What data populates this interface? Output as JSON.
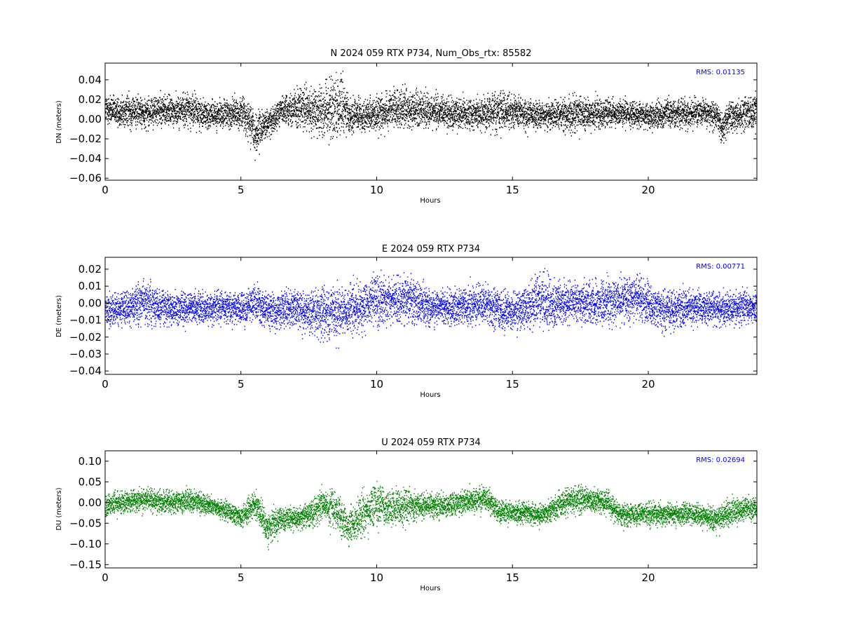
{
  "chart_data": [
    {
      "type": "scatter",
      "title": "N 2024 059 RTX  P734, Num_Obs_rtx: 85582",
      "xlabel": "Hours",
      "ylabel": "DN (meters)",
      "xlim": [
        0,
        24
      ],
      "ylim": [
        -0.062,
        0.057
      ],
      "xticks": [
        0,
        5,
        10,
        15,
        20
      ],
      "xtick_labels": [
        "0",
        "5",
        "10",
        "15",
        "20"
      ],
      "yticks": [
        -0.06,
        -0.04,
        -0.02,
        0.0,
        0.02,
        0.04
      ],
      "ytick_labels": [
        "−0.06",
        "−0.04",
        "−0.02",
        "0.00",
        "0.02",
        "0.04"
      ],
      "color": "#000000",
      "rms_label": "RMS:  0.01135",
      "grid": false,
      "profile": {
        "hours": [
          0,
          0.5,
          1,
          1.5,
          2,
          2.5,
          3,
          3.5,
          4,
          4.5,
          5,
          5.3,
          5.5,
          6,
          6.5,
          7,
          7.5,
          8,
          8.3,
          8.7,
          9,
          9.5,
          10,
          10.5,
          11,
          11.5,
          12,
          13,
          14,
          14.5,
          15,
          15.5,
          16,
          17,
          17.5,
          18,
          19,
          20,
          21,
          21.5,
          22,
          22.5,
          22.7,
          23,
          23.5,
          24
        ],
        "center": [
          0.01,
          0.008,
          0.009,
          0.007,
          0.01,
          0.008,
          0.011,
          0.007,
          0.004,
          0.006,
          0.007,
          0.0,
          -0.015,
          -0.003,
          0.01,
          0.012,
          0.008,
          0.01,
          0.012,
          0.013,
          0.004,
          0.004,
          0.006,
          0.01,
          0.011,
          0.01,
          0.008,
          0.006,
          0.007,
          0.01,
          0.009,
          0.006,
          0.003,
          0.006,
          0.005,
          0.007,
          0.006,
          0.004,
          0.007,
          0.006,
          0.008,
          0.004,
          -0.008,
          0.003,
          0.006,
          0.008
        ],
        "spread": [
          0.01,
          0.01,
          0.011,
          0.01,
          0.01,
          0.01,
          0.011,
          0.01,
          0.008,
          0.01,
          0.011,
          0.013,
          0.014,
          0.009,
          0.008,
          0.012,
          0.016,
          0.018,
          0.02,
          0.02,
          0.012,
          0.01,
          0.012,
          0.012,
          0.013,
          0.012,
          0.011,
          0.01,
          0.012,
          0.014,
          0.011,
          0.01,
          0.009,
          0.011,
          0.012,
          0.01,
          0.009,
          0.008,
          0.009,
          0.01,
          0.009,
          0.009,
          0.01,
          0.01,
          0.011,
          0.011
        ]
      }
    },
    {
      "type": "scatter",
      "title": "E 2024 059 RTX  P734",
      "xlabel": "Hours",
      "ylabel": "DE (meters)",
      "xlim": [
        0,
        24
      ],
      "ylim": [
        -0.042,
        0.027
      ],
      "xticks": [
        0,
        5,
        10,
        15,
        20
      ],
      "xtick_labels": [
        "0",
        "5",
        "10",
        "15",
        "20"
      ],
      "yticks": [
        -0.04,
        -0.03,
        -0.02,
        -0.01,
        0.0,
        0.01,
        0.02
      ],
      "ytick_labels": [
        "−0.04",
        "−0.03",
        "−0.02",
        "−0.01",
        "0.00",
        "0.01",
        "0.02"
      ],
      "color": "#0000ff",
      "rms_label": "RMS:  0.00771",
      "grid": false,
      "profile": {
        "hours": [
          0,
          0.5,
          1,
          1.5,
          2,
          3,
          4,
          5,
          5.5,
          6,
          7,
          7.5,
          8,
          8.5,
          9,
          9.5,
          10,
          10.5,
          11,
          12,
          13,
          14,
          14.5,
          15,
          15.5,
          16,
          16.5,
          17,
          18,
          19,
          19.5,
          20,
          20.5,
          21,
          22,
          23,
          24
        ],
        "center": [
          -0.003,
          -0.004,
          -0.002,
          0.001,
          -0.002,
          -0.003,
          -0.002,
          -0.003,
          0.0,
          -0.004,
          -0.003,
          -0.006,
          -0.004,
          -0.006,
          -0.004,
          0.0,
          0.002,
          0.001,
          0.003,
          -0.002,
          -0.002,
          0.0,
          -0.004,
          -0.005,
          -0.003,
          0.002,
          0.0,
          0.001,
          0.0,
          0.002,
          0.004,
          -0.001,
          -0.004,
          -0.003,
          -0.002,
          -0.003,
          -0.002
        ],
        "spread": [
          0.006,
          0.006,
          0.007,
          0.008,
          0.007,
          0.006,
          0.006,
          0.006,
          0.007,
          0.007,
          0.007,
          0.008,
          0.01,
          0.01,
          0.009,
          0.009,
          0.01,
          0.009,
          0.009,
          0.007,
          0.007,
          0.008,
          0.008,
          0.007,
          0.008,
          0.01,
          0.01,
          0.008,
          0.008,
          0.008,
          0.009,
          0.008,
          0.008,
          0.007,
          0.007,
          0.006,
          0.006
        ]
      }
    },
    {
      "type": "scatter",
      "title": "U 2024 059 RTX  P734",
      "xlabel": "Hours",
      "ylabel": "DU (meters)",
      "xlim": [
        0,
        24
      ],
      "ylim": [
        -0.158,
        0.125
      ],
      "xticks": [
        0,
        5,
        10,
        15,
        20
      ],
      "xtick_labels": [
        "0",
        "5",
        "10",
        "15",
        "20"
      ],
      "yticks": [
        -0.15,
        -0.1,
        -0.05,
        0.0,
        0.05,
        0.1
      ],
      "ytick_labels": [
        "−0.15",
        "−0.10",
        "−0.05",
        "0.00",
        "0.05",
        "0.10"
      ],
      "color": "#008000",
      "rms_label": "RMS:  0.02694",
      "grid": false,
      "profile": {
        "hours": [
          0,
          0.5,
          1,
          1.5,
          2,
          2.5,
          3,
          3.5,
          4,
          4.5,
          5,
          5.5,
          6,
          6.5,
          7,
          7.5,
          8,
          8.5,
          9,
          9.5,
          10,
          10.5,
          11,
          11.5,
          12,
          13,
          14,
          14.5,
          15,
          15.5,
          16,
          16.5,
          17,
          17.5,
          18,
          18.5,
          19,
          20,
          21,
          21.5,
          22,
          22.5,
          23,
          23.5,
          24
        ],
        "center": [
          -0.005,
          0.0,
          0.005,
          0.008,
          0.005,
          0.002,
          0.005,
          0.0,
          -0.01,
          -0.02,
          -0.035,
          0.0,
          -0.06,
          -0.04,
          -0.035,
          -0.03,
          0.0,
          -0.02,
          -0.06,
          -0.03,
          0.0,
          -0.015,
          -0.01,
          -0.005,
          -0.01,
          0.0,
          0.01,
          -0.02,
          -0.025,
          -0.02,
          -0.03,
          -0.015,
          0.005,
          0.01,
          0.005,
          0.0,
          -0.03,
          -0.025,
          -0.03,
          -0.025,
          -0.03,
          -0.04,
          -0.02,
          -0.015,
          -0.015
        ],
        "spread": [
          0.018,
          0.018,
          0.018,
          0.018,
          0.018,
          0.017,
          0.018,
          0.017,
          0.015,
          0.016,
          0.016,
          0.022,
          0.025,
          0.02,
          0.018,
          0.02,
          0.03,
          0.032,
          0.032,
          0.035,
          0.035,
          0.028,
          0.028,
          0.022,
          0.018,
          0.018,
          0.02,
          0.02,
          0.018,
          0.017,
          0.017,
          0.018,
          0.022,
          0.022,
          0.018,
          0.018,
          0.018,
          0.017,
          0.017,
          0.018,
          0.018,
          0.02,
          0.02,
          0.018,
          0.018
        ]
      }
    }
  ]
}
